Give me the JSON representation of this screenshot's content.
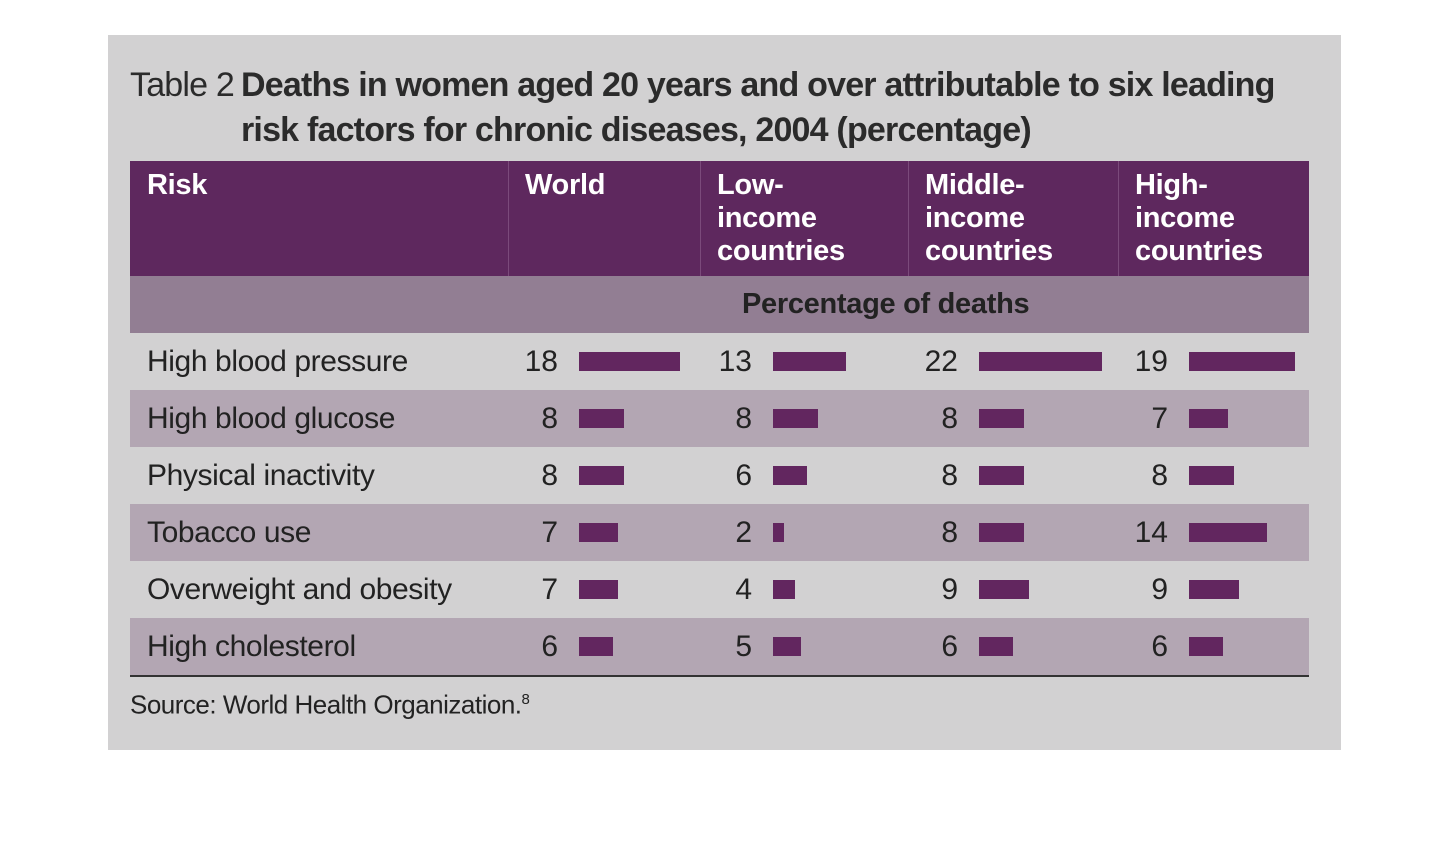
{
  "title": {
    "label": "Table 2",
    "text": "Deaths in women aged 20 years and over attributable to six leading risk factors for chronic diseases, 2004 (percentage)"
  },
  "header": {
    "risk": "Risk",
    "world": "World",
    "low": "Low-income countries",
    "middle": "Middle-income countries",
    "high": "High-income countries"
  },
  "subheader": "Percentage of deaths",
  "source": {
    "text": "Source: World Health Organization.",
    "note": "8"
  },
  "colors": {
    "header": "#5e285e",
    "subheader": "#927e93",
    "row_alt": "#b3a6b3",
    "bar": "#62265f",
    "panel": "#d2d1d2"
  },
  "chart_data": {
    "type": "table",
    "title": "Deaths in women aged 20 years and over attributable to six leading risk factors for chronic diseases, 2004 (percentage)",
    "columns": [
      "World",
      "Low-income countries",
      "Middle-income countries",
      "High-income countries"
    ],
    "categories": [
      "High blood pressure",
      "High blood glucose",
      "Physical inactivity",
      "Tobacco use",
      "Overweight and obesity",
      "High cholesterol"
    ],
    "series": [
      {
        "name": "World",
        "values": [
          18,
          8,
          8,
          7,
          7,
          6
        ]
      },
      {
        "name": "Low-income countries",
        "values": [
          13,
          8,
          6,
          2,
          4,
          5
        ]
      },
      {
        "name": "Middle-income countries",
        "values": [
          22,
          8,
          8,
          8,
          9,
          6
        ]
      },
      {
        "name": "High-income countries",
        "values": [
          19,
          7,
          8,
          14,
          9,
          6
        ]
      }
    ]
  }
}
